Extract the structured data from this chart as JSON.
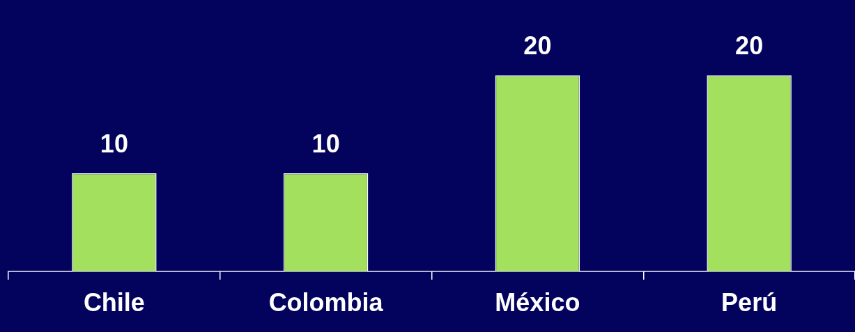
{
  "chart_data": {
    "type": "bar",
    "categories": [
      "Chile",
      "Colombia",
      "México",
      "Perú"
    ],
    "values": [
      10,
      10,
      20,
      20
    ],
    "color": "#a2e05e",
    "data_labels": true
  }
}
